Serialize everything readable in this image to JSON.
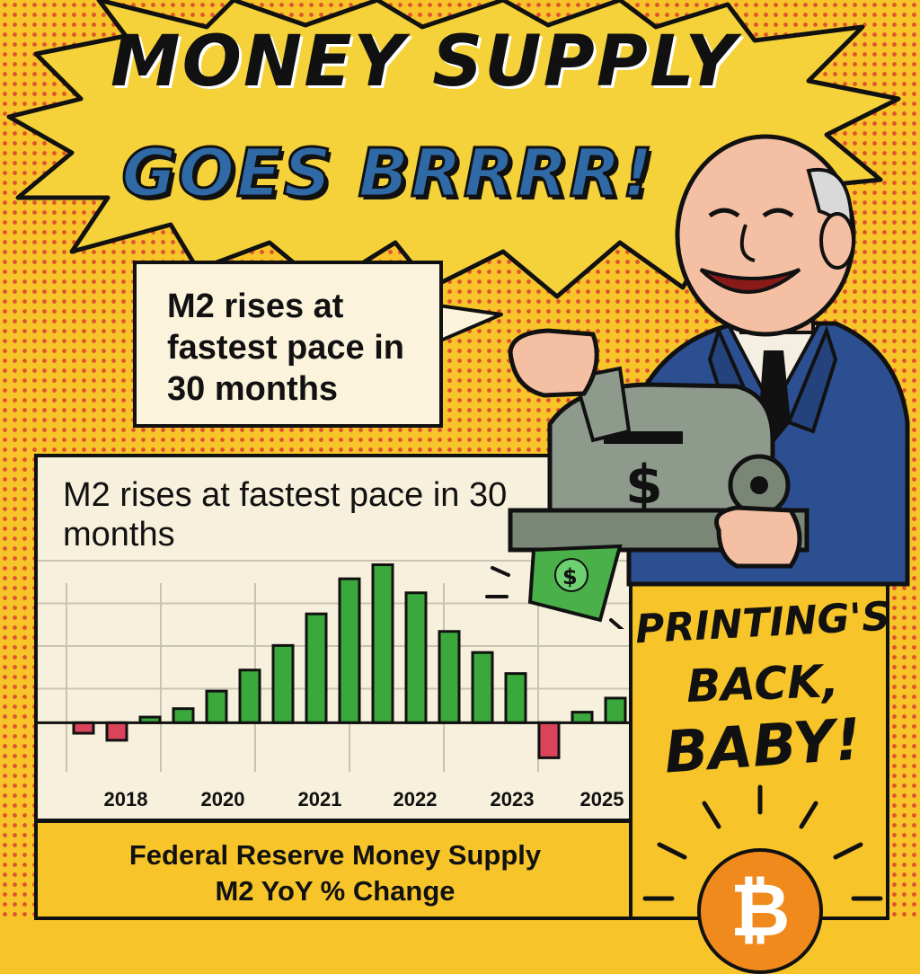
{
  "title": {
    "line1": "MONEY SUPPLY",
    "line2": "GOES BRRRR!"
  },
  "callout": {
    "text": "M2 rises at fastest pace in 30 months"
  },
  "side_panel": {
    "line1": "PRINTING'S",
    "line2": "BACK,",
    "line3": "BABY!",
    "coin_icon": "bitcoin-icon",
    "coin_symbol": "₿"
  },
  "caption": {
    "line1": "Federal Reserve Money Supply",
    "line2": "M2 YoY % Change"
  },
  "colors": {
    "background": "#f7c52a",
    "dots": "#e0532f",
    "positive_bar": "#3aa83a",
    "negative_bar": "#d9445a",
    "title_blue": "#2f6aa6",
    "suit": "#2c4f92",
    "coin": "#f08a1c"
  },
  "chart_data": {
    "type": "bar",
    "title": "M2 rises at fastest pace in 30 months",
    "x_tick_labels": [
      "2018",
      "2020",
      "2021",
      "2022",
      "2023",
      "2025"
    ],
    "values": [
      -1.5,
      -2.5,
      0.8,
      2,
      4.5,
      7.5,
      11,
      15.5,
      20.5,
      22.5,
      18.5,
      13,
      10,
      7,
      -5,
      1.5,
      3.5
    ],
    "ylim": [
      -7,
      25
    ],
    "grid": true
  }
}
